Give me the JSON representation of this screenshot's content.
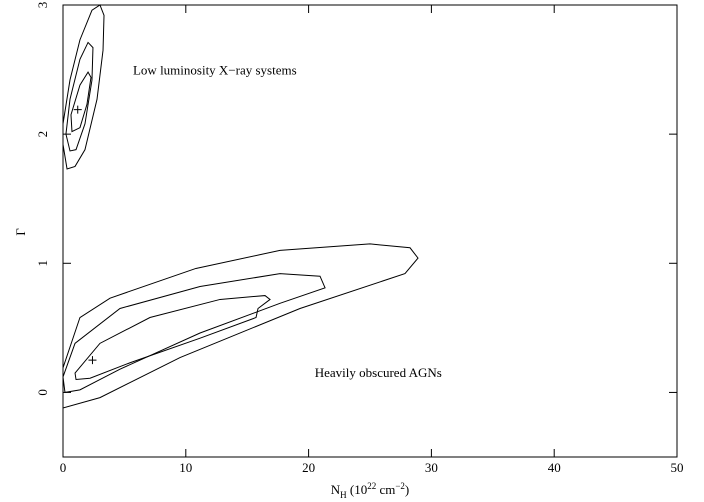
{
  "chart_data": {
    "type": "contour",
    "x_label_parts": [
      "N",
      "H",
      " (10",
      "22",
      " cm",
      "−2",
      ")"
    ],
    "y_label": "Γ",
    "xlim": [
      0,
      50
    ],
    "ylim": [
      -0.5,
      3
    ],
    "xticks": [
      0,
      10,
      20,
      30,
      40,
      50
    ],
    "yticks": [
      0,
      1,
      2,
      3
    ],
    "color": "#000000",
    "annotations": [
      {
        "text": "Low luminosity X−ray systems",
        "x": 5.7,
        "y": 2.46
      },
      {
        "text": "Heavily obscured AGNs",
        "x": 20.5,
        "y": 0.12
      }
    ],
    "best_fit": {
      "x": [
        1.2,
        2.4
      ],
      "y": [
        2.19,
        0.25
      ]
    },
    "contours": [
      {
        "x": [
          0.33,
          0,
          0,
          0.57,
          1.38,
          2.36,
          3.01,
          3.34,
          3.26,
          2.77,
          1.79,
          0.98
        ],
        "y": [
          1.73,
          1.92,
          2.08,
          2.42,
          2.73,
          2.96,
          3.0,
          2.92,
          2.65,
          2.27,
          1.88,
          1.75
        ]
      },
      {
        "x": [
          0.57,
          0.24,
          0.57,
          1.38,
          2.04,
          2.44,
          2.36,
          1.79,
          1.06
        ],
        "y": [
          1.87,
          2.0,
          2.27,
          2.58,
          2.71,
          2.67,
          2.42,
          2.08,
          1.88
        ]
      },
      {
        "x": [
          0.73,
          0.65,
          1.38,
          2.04,
          2.28,
          1.95,
          1.38
        ],
        "y": [
          2.02,
          2.15,
          2.38,
          2.48,
          2.44,
          2.23,
          2.05
        ]
      },
      {
        "x": [
          0,
          0,
          1.38,
          3.83,
          10.82,
          17.67,
          25,
          28.26,
          28.91,
          27.85,
          19.3,
          9.53,
          3.01
        ],
        "y": [
          -0.12,
          0.19,
          0.58,
          0.73,
          0.96,
          1.1,
          1.15,
          1.12,
          1.04,
          0.92,
          0.65,
          0.27,
          -0.04
        ]
      },
      {
        "x": [
          0,
          0.98,
          4.64,
          11.16,
          17.67,
          20.93,
          21.34,
          17.67,
          11.16,
          4.64,
          1.38,
          0.16
        ],
        "y": [
          0.12,
          0.38,
          0.65,
          0.82,
          0.92,
          0.9,
          0.81,
          0.69,
          0.46,
          0.18,
          0.02,
          0
        ]
      },
      {
        "x": [
          0.98,
          3.01,
          7.08,
          12.79,
          16.45,
          16.86,
          15.88,
          15.72,
          11.16,
          5.46,
          2.2,
          1.06
        ],
        "y": [
          0.15,
          0.38,
          0.58,
          0.72,
          0.75,
          0.72,
          0.65,
          0.58,
          0.42,
          0.23,
          0.11,
          0.1
        ]
      }
    ]
  }
}
